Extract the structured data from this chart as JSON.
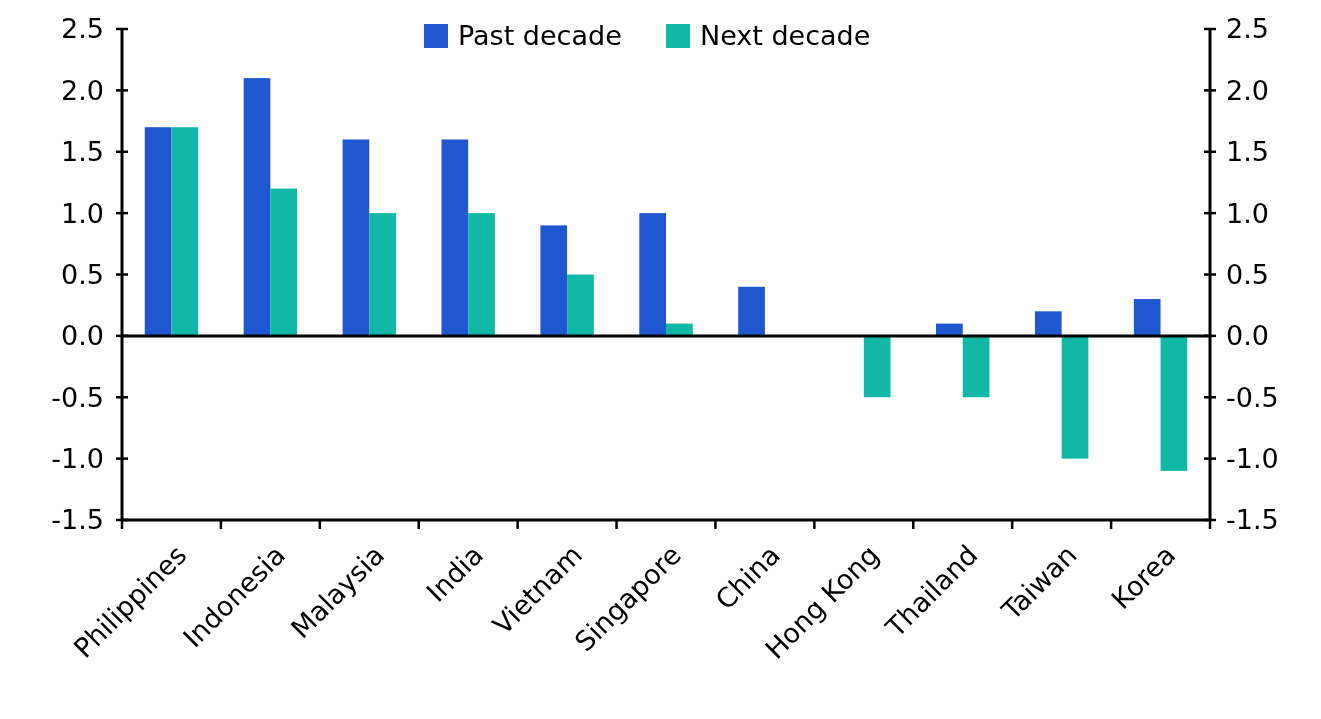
{
  "chart_data": {
    "type": "bar",
    "categories": [
      "Philippines",
      "Indonesia",
      "Malaysia",
      "India",
      "Vietnam",
      "Singapore",
      "China",
      "Hong Kong",
      "Thailand",
      "Taiwan",
      "Korea"
    ],
    "series": [
      {
        "name": "Past decade",
        "color": "#1f57d1",
        "values": [
          1.7,
          2.1,
          1.6,
          1.6,
          0.9,
          1.0,
          0.4,
          0,
          0.1,
          0.2,
          0.3
        ]
      },
      {
        "name": "Next decade",
        "color": "#12b8a6",
        "values": [
          1.7,
          1.2,
          1.0,
          1.0,
          0.5,
          0.1,
          0,
          -0.5,
          -0.5,
          -1.0,
          -1.1
        ]
      }
    ],
    "ylim": [
      -1.5,
      2.5
    ],
    "yticks": [
      {
        "value": -1.5,
        "label": "-1.5"
      },
      {
        "value": -1,
        "label": "-1.0"
      },
      {
        "value": -0.5,
        "label": "-0.5"
      },
      {
        "value": 0,
        "label": "0.0"
      },
      {
        "value": 0.5,
        "label": "0.5"
      },
      {
        "value": 1,
        "label": "1.0"
      },
      {
        "value": 1.5,
        "label": "1.5"
      },
      {
        "value": 2,
        "label": "2.0"
      },
      {
        "value": 2.5,
        "label": "2.5"
      }
    ],
    "y2lim": [
      -1.5,
      2.5
    ],
    "y2ticks": [
      {
        "value": -1.5,
        "label": "-1.5"
      },
      {
        "value": -1,
        "label": "-1.0"
      },
      {
        "value": -0.5,
        "label": "-0.5"
      },
      {
        "value": 0,
        "label": "0.0"
      },
      {
        "value": 0.5,
        "label": "0.5"
      },
      {
        "value": 1,
        "label": "1.0"
      },
      {
        "value": 1.5,
        "label": "1.5"
      },
      {
        "value": 2,
        "label": "2.0"
      },
      {
        "value": 2.5,
        "label": "2.5"
      }
    ],
    "legend": "top"
  }
}
